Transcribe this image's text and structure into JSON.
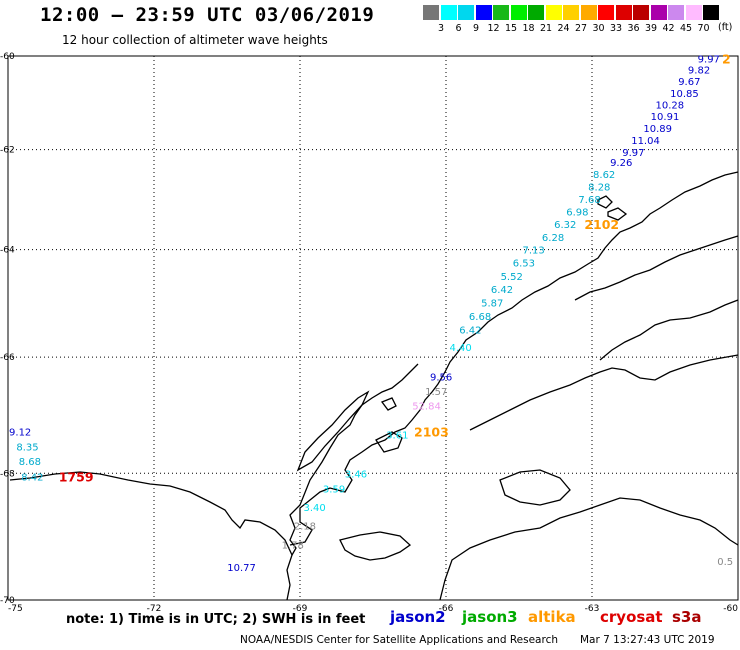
{
  "header": {
    "title": "12:00 – 23:59 UTC 03/06/2019",
    "subtitle": "12 hour collection of altimeter wave heights"
  },
  "colorbar": {
    "colors": [
      "#777777",
      "#00ffff",
      "#00d7ee",
      "#0000ff",
      "#18b818",
      "#00ee00",
      "#00aa00",
      "#ffff00",
      "#ffd000",
      "#ffaa00",
      "#ff0000",
      "#dd0000",
      "#bb0000",
      "#aa00aa",
      "#cc88ee",
      "#ffbbff",
      "#000000"
    ],
    "labels": [
      "3",
      "6",
      "9",
      "12",
      "15",
      "18",
      "21",
      "24",
      "27",
      "30",
      "33",
      "36",
      "39",
      "42",
      "45",
      "70"
    ],
    "unit": "(ft)"
  },
  "axes": {
    "lat_labels": [
      "-60",
      "-62",
      "-64",
      "-66",
      "-68",
      "-70"
    ],
    "lon_labels": [
      "-75",
      "-72",
      "-69",
      "-66",
      "-63",
      "-60"
    ]
  },
  "observations": [
    {
      "text": "9.97",
      "color": "#0000cc",
      "lon": -60.6,
      "lat": -60.05
    },
    {
      "text": "9.82",
      "color": "#0000cc",
      "lon": -60.8,
      "lat": -60.3
    },
    {
      "text": "9.67",
      "color": "#0000cc",
      "lon": -61.0,
      "lat": -60.55
    },
    {
      "text": "10.85",
      "color": "#0000cc",
      "lon": -61.1,
      "lat": -60.8
    },
    {
      "text": "10.28",
      "color": "#0000cc",
      "lon": -61.4,
      "lat": -61.05
    },
    {
      "text": "10.91",
      "color": "#0000cc",
      "lon": -61.5,
      "lat": -61.3
    },
    {
      "text": "10.89",
      "color": "#0000cc",
      "lon": -61.65,
      "lat": -61.55
    },
    {
      "text": "11.04",
      "color": "#0000cc",
      "lon": -61.9,
      "lat": -61.8
    },
    {
      "text": "9.97",
      "color": "#0000cc",
      "lon": -62.15,
      "lat": -62.05
    },
    {
      "text": "9.26",
      "color": "#0000cc",
      "lon": -62.4,
      "lat": -62.25
    },
    {
      "text": "8.62",
      "color": "#00aacc",
      "lon": -62.75,
      "lat": -62.5
    },
    {
      "text": "8.28",
      "color": "#00aacc",
      "lon": -62.85,
      "lat": -62.75
    },
    {
      "text": "7.68",
      "color": "#00aacc",
      "lon": -63.05,
      "lat": -63.0
    },
    {
      "text": "6.98",
      "color": "#00aacc",
      "lon": -63.3,
      "lat": -63.25
    },
    {
      "text": "6.32",
      "color": "#00aacc",
      "lon": -63.55,
      "lat": -63.5
    },
    {
      "text": "6.28",
      "color": "#00aacc",
      "lon": -63.8,
      "lat": -63.75
    },
    {
      "text": "7.13",
      "color": "#00aacc",
      "lon": -64.2,
      "lat": -64.0
    },
    {
      "text": "6.53",
      "color": "#00aacc",
      "lon": -64.4,
      "lat": -64.25
    },
    {
      "text": "5.52",
      "color": "#00aacc",
      "lon": -64.65,
      "lat": -64.5
    },
    {
      "text": "6.42",
      "color": "#00aacc",
      "lon": -64.85,
      "lat": -64.75
    },
    {
      "text": "5.87",
      "color": "#00aacc",
      "lon": -65.05,
      "lat": -65.0
    },
    {
      "text": "6.68",
      "color": "#00aacc",
      "lon": -65.3,
      "lat": -65.25
    },
    {
      "text": "6.42",
      "color": "#00aacc",
      "lon": -65.5,
      "lat": -65.5
    },
    {
      "text": "4.40",
      "color": "#00ddee",
      "lon": -65.7,
      "lat": -65.82
    },
    {
      "text": "9.56",
      "color": "#0000cc",
      "lon": -66.1,
      "lat": -66.35
    },
    {
      "text": "1.57",
      "color": "#888888",
      "lon": -66.2,
      "lat": -66.6
    },
    {
      "text": "52.84",
      "color": "#ee99ee",
      "lon": -66.4,
      "lat": -66.85
    },
    {
      "text": "3.61",
      "color": "#00ddee",
      "lon": -67.0,
      "lat": -67.35
    },
    {
      "text": "3.46",
      "color": "#00ddee",
      "lon": -67.85,
      "lat": -68.0
    },
    {
      "text": "3.59",
      "color": "#00ddee",
      "lon": -68.3,
      "lat": -68.25
    },
    {
      "text": "3.40",
      "color": "#00ddee",
      "lon": -68.7,
      "lat": -68.55
    },
    {
      "text": "2.18",
      "color": "#888888",
      "lon": -68.9,
      "lat": -68.85
    },
    {
      "text": "1.78",
      "color": "#888888",
      "lon": -69.15,
      "lat": -69.15
    },
    {
      "text": "10.77",
      "color": "#0000cc",
      "lon": -70.2,
      "lat": -69.5
    },
    {
      "text": "9.12",
      "color": "#0000cc",
      "lon": -74.75,
      "lat": -67.3
    },
    {
      "text": "8.35",
      "color": "#00aacc",
      "lon": -74.6,
      "lat": -67.55
    },
    {
      "text": "8.68",
      "color": "#00aacc",
      "lon": -74.55,
      "lat": -67.8
    },
    {
      "text": "8.42",
      "color": "#00aacc",
      "lon": -74.5,
      "lat": -68.05
    },
    {
      "text": "0.5",
      "color": "#888888",
      "lon": -60.1,
      "lat": -69.4
    }
  ],
  "time_labels": [
    {
      "text": "2102",
      "color": "#ff9900",
      "lon": -62.8,
      "lat": -63.5
    },
    {
      "text": "2103",
      "color": "#ff9900",
      "lon": -66.3,
      "lat": -67.3
    },
    {
      "text": "1759",
      "color": "#dd0000",
      "lon": -73.6,
      "lat": -68.05
    },
    {
      "text": "2",
      "color": "#ff9900",
      "lon": -60.15,
      "lat": -60.05
    }
  ],
  "footer": {
    "note": "note: 1) Time is in UTC; 2) SWH is in feet",
    "satellites": [
      {
        "name": "jason2",
        "color": "#0000cc"
      },
      {
        "name": "jason3",
        "color": "#00aa00"
      },
      {
        "name": "altika",
        "color": "#ff9900"
      },
      {
        "name": "cryosat",
        "color": "#dd0000"
      },
      {
        "name": "s3a",
        "color": "#aa0000"
      }
    ],
    "credit": "NOAA/NESDIS Center for Satellite Applications and Research",
    "timestamp": "Mar  7 13:27:43 UTC 2019"
  }
}
